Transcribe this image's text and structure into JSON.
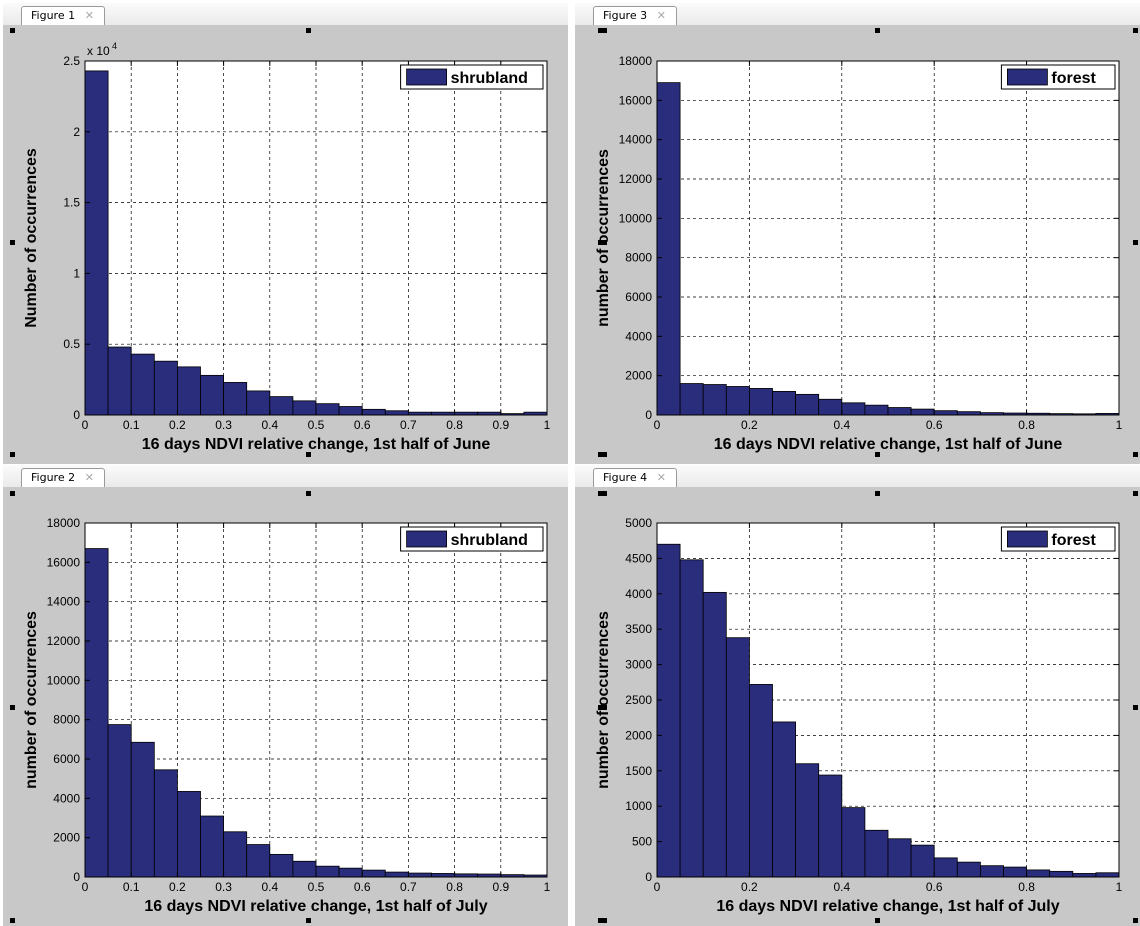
{
  "panels": [
    {
      "tab_label": "Figure 1",
      "close_glyph": "✕"
    },
    {
      "tab_label": "Figure 3",
      "close_glyph": "✕"
    },
    {
      "tab_label": "Figure 2",
      "close_glyph": "✕"
    },
    {
      "tab_label": "Figure 4",
      "close_glyph": "✕"
    }
  ],
  "chart_data": [
    {
      "type": "bar",
      "legend": "shrubland",
      "legend_position": "top-right",
      "xlabel": "16 days NDVI relative change, 1st half of June",
      "ylabel": "Number of occurrences",
      "exponent_label": "x 10",
      "exponent_power": "4",
      "xlim": [
        0,
        1
      ],
      "ylim": [
        0,
        2.5
      ],
      "xticks": [
        0,
        0.1,
        0.2,
        0.3,
        0.4,
        0.5,
        0.6,
        0.7,
        0.8,
        0.9,
        1
      ],
      "xtick_labels": [
        "0",
        "0.1",
        "0.2",
        "0.3",
        "0.4",
        "0.5",
        "0.6",
        "0.7",
        "0.8",
        "0.9",
        "1"
      ],
      "yticks": [
        0,
        0.5,
        1,
        1.5,
        2,
        2.5
      ],
      "ytick_labels": [
        "0",
        "0.5",
        "1",
        "1.5",
        "2",
        "2.5"
      ],
      "grid": true,
      "bin_width": 0.05,
      "values": [
        2.43,
        0.48,
        0.43,
        0.38,
        0.34,
        0.28,
        0.23,
        0.17,
        0.13,
        0.1,
        0.08,
        0.06,
        0.04,
        0.03,
        0.02,
        0.02,
        0.02,
        0.02,
        0.01,
        0.02
      ],
      "bar_color": "#2a2c7c"
    },
    {
      "type": "bar",
      "legend": "forest",
      "legend_position": "top-right",
      "xlabel": "16 days NDVI relative change, 1st half of June",
      "ylabel": "number of occurrences",
      "xlim": [
        0,
        1
      ],
      "ylim": [
        0,
        18000
      ],
      "xticks": [
        0,
        0.2,
        0.4,
        0.6,
        0.8,
        1
      ],
      "xtick_labels": [
        "0",
        "0.2",
        "0.4",
        "0.6",
        "0.8",
        "1"
      ],
      "yticks": [
        0,
        2000,
        4000,
        6000,
        8000,
        10000,
        12000,
        14000,
        16000,
        18000
      ],
      "ytick_labels": [
        "0",
        "2000",
        "4000",
        "6000",
        "8000",
        "10000",
        "12000",
        "14000",
        "16000",
        "18000"
      ],
      "grid": true,
      "bin_width": 0.05,
      "values": [
        16900,
        1600,
        1550,
        1450,
        1350,
        1200,
        1050,
        800,
        620,
        500,
        380,
        300,
        220,
        170,
        120,
        100,
        90,
        70,
        60,
        80
      ],
      "bar_color": "#2a2c7c"
    },
    {
      "type": "bar",
      "legend": "shrubland",
      "legend_position": "top-right",
      "xlabel": "16 days NDVI relative change, 1st half of July",
      "ylabel": "number of occurrences",
      "xlim": [
        0,
        1
      ],
      "ylim": [
        0,
        18000
      ],
      "xticks": [
        0,
        0.1,
        0.2,
        0.3,
        0.4,
        0.5,
        0.6,
        0.7,
        0.8,
        0.9,
        1
      ],
      "xtick_labels": [
        "0",
        "0.1",
        "0.2",
        "0.3",
        "0.4",
        "0.5",
        "0.6",
        "0.7",
        "0.8",
        "0.9",
        "1"
      ],
      "yticks": [
        0,
        2000,
        4000,
        6000,
        8000,
        10000,
        12000,
        14000,
        16000,
        18000
      ],
      "ytick_labels": [
        "0",
        "2000",
        "4000",
        "6000",
        "8000",
        "10000",
        "12000",
        "14000",
        "16000",
        "18000"
      ],
      "grid": true,
      "bin_width": 0.05,
      "values": [
        16700,
        7750,
        6850,
        5450,
        4350,
        3100,
        2300,
        1650,
        1150,
        800,
        550,
        450,
        350,
        250,
        200,
        180,
        160,
        150,
        120,
        100
      ],
      "bar_color": "#2a2c7c"
    },
    {
      "type": "bar",
      "legend": "forest",
      "legend_position": "top-right",
      "xlabel": "16 days NDVI relative change, 1st half of July",
      "ylabel": "number of occurrences",
      "xlim": [
        0,
        1
      ],
      "ylim": [
        0,
        5000
      ],
      "xticks": [
        0,
        0.2,
        0.4,
        0.6,
        0.8,
        1
      ],
      "xtick_labels": [
        "0",
        "0.2",
        "0.4",
        "0.6",
        "0.8",
        "1"
      ],
      "yticks": [
        0,
        500,
        1000,
        1500,
        2000,
        2500,
        3000,
        3500,
        4000,
        4500,
        5000
      ],
      "ytick_labels": [
        "0",
        "500",
        "1000",
        "1500",
        "2000",
        "2500",
        "3000",
        "3500",
        "4000",
        "4500",
        "5000"
      ],
      "grid": true,
      "bin_width": 0.05,
      "values": [
        4700,
        4480,
        4020,
        3380,
        2720,
        2190,
        1600,
        1440,
        980,
        660,
        540,
        450,
        270,
        210,
        160,
        140,
        100,
        80,
        50,
        60
      ],
      "bar_color": "#2a2c7c"
    }
  ]
}
